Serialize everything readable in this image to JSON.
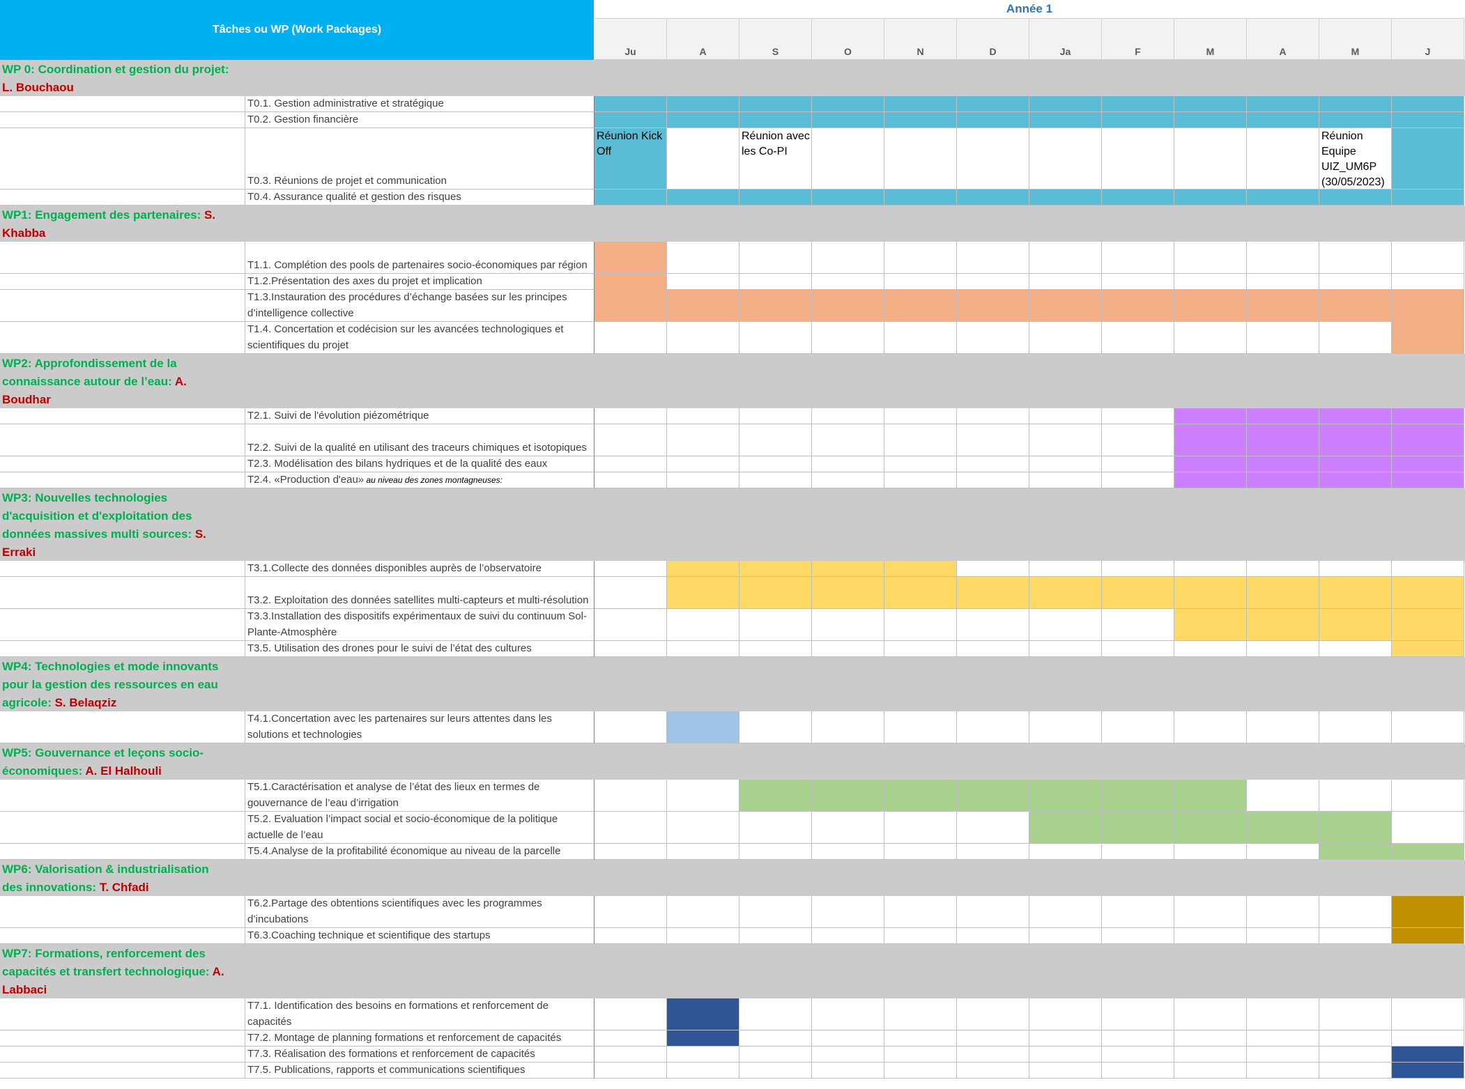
{
  "header": {
    "tasks_title": "Tâches ou WP (Work Packages)",
    "year_label": "Année 1",
    "months": [
      "Ju",
      "A",
      "S",
      "O",
      "N",
      "D",
      "Ja",
      "F",
      "M",
      "A",
      "M",
      "J"
    ]
  },
  "colors": {
    "WP0": "#5bbcd6",
    "WP1": "#f4ae86",
    "WP2": "#cc80ff",
    "WP3": "#ffd966",
    "WP4": "#9dc3e6",
    "WP5": "#a9d18e",
    "WP6": "#bf9000",
    "WP7": "#2f5597",
    "wp_band": "#cbcbcb",
    "header_bg": "#00b0f0"
  },
  "sections": [
    {
      "name": "WP 0: Coordination et gestion du projet:",
      "lead": "L. Bouchaou",
      "tasks": [
        {
          "label": "T0.1. Gestion administrative et stratégique",
          "bars": [
            [
              0,
              11,
              "WP0"
            ]
          ]
        },
        {
          "label": "T0.2. Gestion financière",
          "bars": [
            [
              0,
              11,
              "WP0"
            ]
          ]
        },
        {
          "label": "T0.3. Réunions de projet et communication",
          "bars": [
            [
              0,
              0,
              "WP0"
            ],
            [
              11,
              11,
              "WP0"
            ]
          ],
          "notes": [
            {
              "month": 0,
              "text": "Réunion Kick Off"
            },
            {
              "month": 2,
              "text": "Réunion avec les Co-PI"
            },
            {
              "month": 10,
              "text": "Réunion Equipe UIZ_UM6P (30/05/2023)"
            }
          ]
        },
        {
          "label": "T0.4. Assurance qualité et gestion des risques",
          "bars": [
            [
              0,
              11,
              "WP0"
            ]
          ]
        }
      ]
    },
    {
      "name": "WP1: Engagement des partenaires:",
      "lead": "S. Khabba",
      "tasks": [
        {
          "label": "T1.1. Complétion des pools de partenaires socio-économiques par région",
          "bars": [
            [
              0,
              0,
              "WP1"
            ]
          ]
        },
        {
          "label": "T1.2.Présentation des axes  du projet et implication",
          "bars": [
            [
              0,
              0,
              "WP1"
            ]
          ]
        },
        {
          "label": "T1.3.Instauration des procédures d’échange  basées sur les principes d’intelligence collective",
          "bars": [
            [
              0,
              11,
              "WP1"
            ]
          ]
        },
        {
          "label": "T1.4. Concertation et codécision sur les avancées technologiques et scientifiques du projet",
          "bars": [
            [
              11,
              11,
              "WP1"
            ]
          ]
        }
      ]
    },
    {
      "name": "WP2: Approfondissement de la connaissance autour de l’eau:",
      "lead": "A. Boudhar",
      "tasks": [
        {
          "label": "T2.1. Suivi de l'évolution piézométrique",
          "bars": [
            [
              8,
              11,
              "WP2"
            ]
          ]
        },
        {
          "label": "T2.2. Suivi de la qualité en utilisant des traceurs chimiques et isotopiques",
          "bars": [
            [
              8,
              11,
              "WP2"
            ]
          ]
        },
        {
          "label": "T2.3. Modélisation des bilans hydriques et de la qualité des eaux",
          "bars": [
            [
              8,
              11,
              "WP2"
            ]
          ]
        },
        {
          "label": "T2.4. «Production d'eau»",
          "label_extra": " au niveau des zones montagneuses:",
          "bars": [
            [
              8,
              11,
              "WP2"
            ]
          ]
        }
      ]
    },
    {
      "name": "WP3: Nouvelles technologies d'acquisition et d'exploitation des données massives multi sources:",
      "lead": "S. Erraki",
      "tasks": [
        {
          "label": "T3.1.Collecte des données disponibles auprès de l’observatoire",
          "bars": [
            [
              1,
              4,
              "WP3"
            ]
          ]
        },
        {
          "label": "T3.2. Exploitation des données satellites multi-capteurs  et multi-résolution",
          "bars": [
            [
              1,
              11,
              "WP3"
            ]
          ]
        },
        {
          "label": "T3.3.Installation des dispositifs expérimentaux de suivi du continuum Sol-Plante-Atmosphère",
          "bars": [
            [
              8,
              11,
              "WP3"
            ]
          ]
        },
        {
          "label": "T3.5. Utilisation des drones pour le suivi de l’état des cultures",
          "bars": [
            [
              11,
              11,
              "WP3"
            ]
          ]
        }
      ]
    },
    {
      "name": "WP4: Technologies et mode innovants pour la gestion des ressources en eau agricole:",
      "lead": "S. Belaqziz",
      "tasks": [
        {
          "label": "T4.1.Concertation avec les partenaires sur leurs attentes dans les solutions et technologies",
          "bars": [
            [
              1,
              1,
              "WP4"
            ]
          ]
        }
      ]
    },
    {
      "name": "WP5: Gouvernance et leçons socio-économiques:",
      "lead": "A. El Halhouli",
      "tasks": [
        {
          "label": "T5.1.Caractérisation et analyse de l’état des lieux en termes de gouvernance de l’eau d’irrigation",
          "bars": [
            [
              2,
              8,
              "WP5"
            ]
          ]
        },
        {
          "label": "T5.2. Evaluation l’impact social et socio-économique de la politique actuelle de l’eau",
          "bars": [
            [
              6,
              10,
              "WP5"
            ]
          ]
        },
        {
          "label": "T5.4.Analyse de la profitabilité économique au niveau de la parcelle",
          "bars": [
            [
              10,
              11,
              "WP5"
            ]
          ]
        }
      ]
    },
    {
      "name": "WP6: Valorisation & industrialisation des innovations:",
      "lead": "T. Chfadi",
      "tasks": [
        {
          "label": "T6.2.Partage des obtentions scientifiques  avec les programmes d’incubations",
          "bars": [
            [
              11,
              11,
              "WP6"
            ]
          ]
        },
        {
          "label": "T6.3.Coaching technique et scientifique des startups",
          "bars": [
            [
              11,
              11,
              "WP6"
            ]
          ]
        }
      ]
    },
    {
      "name": "WP7: Formations, renforcement des capacités et transfert technologique:",
      "lead": "A. Labbaci",
      "tasks": [
        {
          "label": "T7.1. Identification des besoins en formations et renforcement de capacités",
          "bars": [
            [
              1,
              1,
              "WP7"
            ]
          ]
        },
        {
          "label": "T7.2. Montage de planning formations et renforcement de capacités",
          "bars": [
            [
              1,
              1,
              "WP7"
            ]
          ]
        },
        {
          "label": "T7.3. Réalisation des formations et renforcement de capacités",
          "bars": [
            [
              11,
              11,
              "WP7"
            ]
          ]
        },
        {
          "label": "T7.5. Publications, rapports et communications scientifiques",
          "bars": [
            [
              11,
              11,
              "WP7"
            ]
          ]
        }
      ]
    }
  ]
}
